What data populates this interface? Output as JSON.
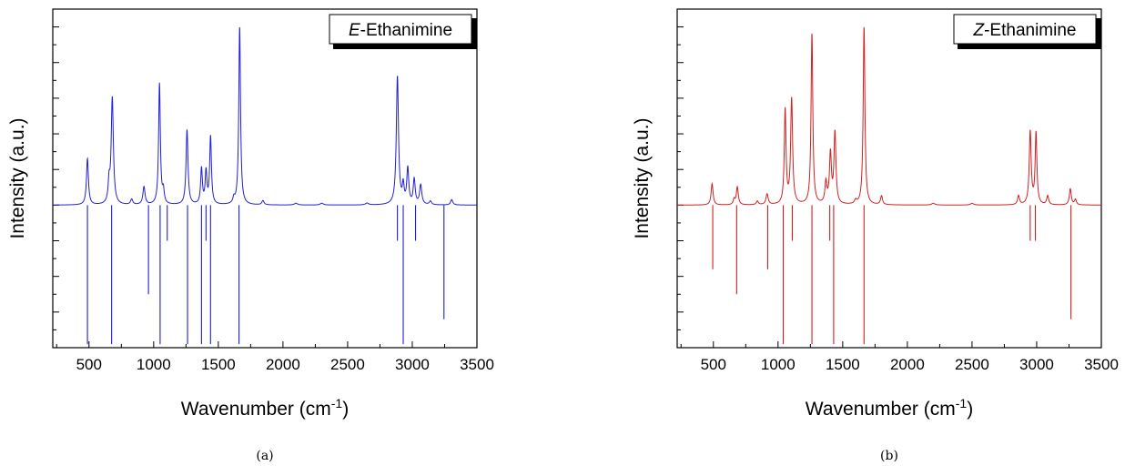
{
  "chart_data": [
    {
      "type": "line",
      "caption": "(a)",
      "legend": {
        "italic": "E",
        "rest": "-Ethanimine",
        "placement": "top-right"
      },
      "xlabel": "Wavenumber (cm",
      "xlabel_sup": "-1",
      "xlabel_end": ")",
      "ylabel": "Intensity (a.u.)",
      "xlim": [
        220,
        3500
      ],
      "ylim": [
        -4,
        5.5
      ],
      "baseline": 0,
      "x_ticks": [
        "500",
        "1000",
        "1500",
        "2000",
        "2500",
        "3000",
        "3500"
      ],
      "x_tick_values": [
        500,
        1000,
        1500,
        2000,
        2500,
        3000,
        3500
      ],
      "y_ticks": [
        -3,
        -2,
        -1,
        0,
        1,
        2,
        3,
        4,
        5
      ],
      "color": "#2020d0",
      "series": [
        {
          "kind": "spectrum",
          "peaks": [
            {
              "x": 488,
              "y": 1.3,
              "w": 9
            },
            {
              "x": 655,
              "y": 0.55,
              "w": 8
            },
            {
              "x": 680,
              "y": 3.0,
              "w": 10
            },
            {
              "x": 830,
              "y": 0.15,
              "w": 10
            },
            {
              "x": 925,
              "y": 0.5,
              "w": 10
            },
            {
              "x": 1045,
              "y": 3.4,
              "w": 8
            },
            {
              "x": 1075,
              "y": 0.35,
              "w": 8
            },
            {
              "x": 1258,
              "y": 2.1,
              "w": 9
            },
            {
              "x": 1370,
              "y": 1.0,
              "w": 8
            },
            {
              "x": 1405,
              "y": 0.9,
              "w": 8
            },
            {
              "x": 1440,
              "y": 1.9,
              "w": 8
            },
            {
              "x": 1620,
              "y": 0.15,
              "w": 8
            },
            {
              "x": 1665,
              "y": 5.0,
              "w": 8
            },
            {
              "x": 1845,
              "y": 0.12,
              "w": 10
            },
            {
              "x": 2100,
              "y": 0.05,
              "w": 15
            },
            {
              "x": 2300,
              "y": 0.05,
              "w": 15
            },
            {
              "x": 2650,
              "y": 0.05,
              "w": 15
            },
            {
              "x": 2885,
              "y": 3.6,
              "w": 10
            },
            {
              "x": 2930,
              "y": 0.5,
              "w": 8
            },
            {
              "x": 2965,
              "y": 1.0,
              "w": 9
            },
            {
              "x": 3015,
              "y": 0.7,
              "w": 9
            },
            {
              "x": 3065,
              "y": 0.55,
              "w": 10
            },
            {
              "x": 3140,
              "y": 0.1,
              "w": 10
            },
            {
              "x": 3305,
              "y": 0.15,
              "w": 10
            }
          ]
        },
        {
          "kind": "sticks",
          "values": [
            {
              "x": 488,
              "y": -3.9
            },
            {
              "x": 675,
              "y": -3.9
            },
            {
              "x": 960,
              "y": -2.5
            },
            {
              "x": 1050,
              "y": -3.9
            },
            {
              "x": 1105,
              "y": -1.0
            },
            {
              "x": 1262,
              "y": -3.9
            },
            {
              "x": 1370,
              "y": -3.9
            },
            {
              "x": 1405,
              "y": -1.0
            },
            {
              "x": 1440,
              "y": -3.9
            },
            {
              "x": 1660,
              "y": -3.9
            },
            {
              "x": 2885,
              "y": -1.0
            },
            {
              "x": 2930,
              "y": -3.9
            },
            {
              "x": 3025,
              "y": -1.0
            },
            {
              "x": 3245,
              "y": -3.2
            }
          ]
        }
      ]
    },
    {
      "type": "line",
      "caption": "(b)",
      "legend": {
        "italic": "Z",
        "rest": "-Ethanimine",
        "placement": "top-right"
      },
      "xlabel": "Wavenumber (cm",
      "xlabel_sup": "-1",
      "xlabel_end": ")",
      "ylabel": "Intensity (a.u.)",
      "xlim": [
        220,
        3500
      ],
      "ylim": [
        -4,
        5.5
      ],
      "baseline": 0,
      "x_ticks": [
        "500",
        "1000",
        "1500",
        "2000",
        "2500",
        "3000",
        "3500"
      ],
      "x_tick_values": [
        500,
        1000,
        1500,
        2000,
        2500,
        3000,
        3500
      ],
      "y_ticks": [
        -3,
        -2,
        -1,
        0,
        1,
        2,
        3,
        4,
        5
      ],
      "color": "#d02020",
      "series": [
        {
          "kind": "spectrum",
          "peaks": [
            {
              "x": 490,
              "y": 0.6,
              "w": 9
            },
            {
              "x": 660,
              "y": 0.15,
              "w": 8
            },
            {
              "x": 685,
              "y": 0.5,
              "w": 9
            },
            {
              "x": 840,
              "y": 0.1,
              "w": 10
            },
            {
              "x": 915,
              "y": 0.3,
              "w": 10
            },
            {
              "x": 1055,
              "y": 2.65,
              "w": 8
            },
            {
              "x": 1105,
              "y": 2.95,
              "w": 9
            },
            {
              "x": 1262,
              "y": 4.8,
              "w": 8
            },
            {
              "x": 1370,
              "y": 0.6,
              "w": 9
            },
            {
              "x": 1405,
              "y": 1.4,
              "w": 9
            },
            {
              "x": 1440,
              "y": 2.0,
              "w": 9
            },
            {
              "x": 1600,
              "y": 0.1,
              "w": 10
            },
            {
              "x": 1665,
              "y": 5.0,
              "w": 8
            },
            {
              "x": 1800,
              "y": 0.25,
              "w": 9
            },
            {
              "x": 2200,
              "y": 0.05,
              "w": 15
            },
            {
              "x": 2500,
              "y": 0.05,
              "w": 15
            },
            {
              "x": 2860,
              "y": 0.25,
              "w": 9
            },
            {
              "x": 2950,
              "y": 2.05,
              "w": 9
            },
            {
              "x": 2995,
              "y": 2.0,
              "w": 8
            },
            {
              "x": 3085,
              "y": 0.25,
              "w": 9
            },
            {
              "x": 3260,
              "y": 0.45,
              "w": 9
            },
            {
              "x": 3300,
              "y": 0.15,
              "w": 9
            }
          ]
        },
        {
          "kind": "sticks",
          "values": [
            {
              "x": 495,
              "y": -1.8
            },
            {
              "x": 680,
              "y": -2.5
            },
            {
              "x": 920,
              "y": -1.8
            },
            {
              "x": 1040,
              "y": -3.9
            },
            {
              "x": 1110,
              "y": -1.0
            },
            {
              "x": 1262,
              "y": -3.9
            },
            {
              "x": 1400,
              "y": -1.0
            },
            {
              "x": 1430,
              "y": -3.9
            },
            {
              "x": 1665,
              "y": -3.9
            },
            {
              "x": 2950,
              "y": -1.0
            },
            {
              "x": 2990,
              "y": -1.0
            },
            {
              "x": 3265,
              "y": -3.2
            }
          ]
        }
      ]
    }
  ]
}
